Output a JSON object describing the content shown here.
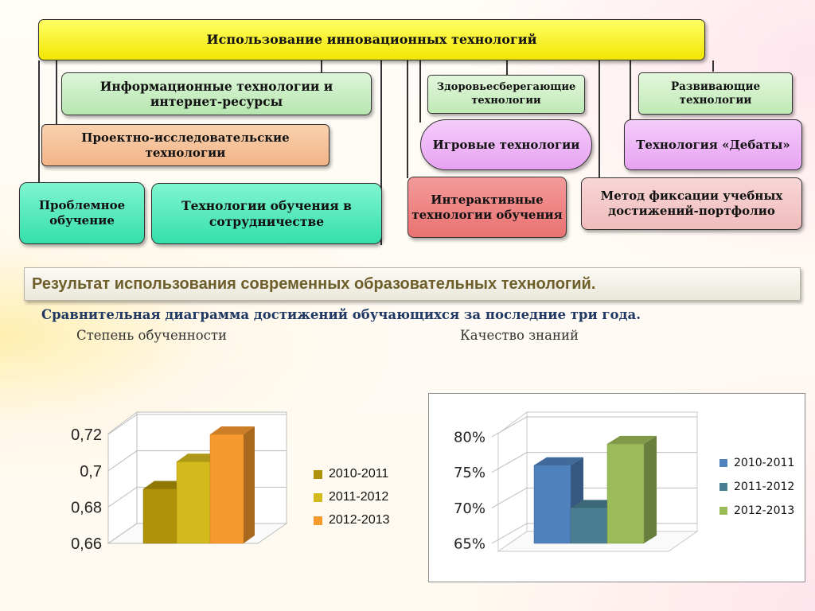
{
  "diagram": {
    "root": "Использование инновационных технологий",
    "info_tech": "Информационные технологии и интернет-ресурсы",
    "project_tech": "Проектно-исследовательские технологии",
    "problem": "Проблемное обучение",
    "cooperation": "Технологии обучения в сотрудничестве",
    "health": "Здоровьесберегающие технологии",
    "game": "Игровые технологии",
    "interactive": "Интерактивные технологии обучения",
    "developing": "Развивающие технологии",
    "debate": "Технология «Дебаты»",
    "portfolio": "Метод фиксации учебных достижений-портфолио"
  },
  "banner": "Результат использования современных образовательных  технологий.",
  "subtitle": "Сравнительная диаграмма достижений обучающихся за последние три года.",
  "chart_titles": {
    "left": "Степень обученности",
    "right": "Качество знаний"
  },
  "colors": {
    "left": [
      "#b09208",
      "#d4b91c",
      "#f79a2d"
    ],
    "right": [
      "#4f81bd",
      "#4a7f91",
      "#9bbb59"
    ]
  },
  "chart_data": [
    {
      "type": "bar",
      "title": "Степень обученности",
      "categories": [
        ""
      ],
      "series": [
        {
          "name": "2010-2011",
          "values": [
            0.69
          ]
        },
        {
          "name": "2011-2012",
          "values": [
            0.705
          ]
        },
        {
          "name": "2012-2013",
          "values": [
            0.72
          ]
        }
      ],
      "ylim": [
        0.66,
        0.72
      ],
      "ticks": [
        "0,66",
        "0,68",
        "0,7",
        "0,72"
      ],
      "legend": "right",
      "grid": true
    },
    {
      "type": "bar",
      "title": "Качество знаний",
      "categories": [
        ""
      ],
      "series": [
        {
          "name": "2010-2011",
          "values": [
            76
          ]
        },
        {
          "name": "2011-2012",
          "values": [
            70
          ]
        },
        {
          "name": "2012-2013",
          "values": [
            79
          ]
        }
      ],
      "ylim": [
        65,
        80
      ],
      "ticks": [
        "65%",
        "70%",
        "75%",
        "80%"
      ],
      "legend": "right",
      "grid": true
    }
  ]
}
